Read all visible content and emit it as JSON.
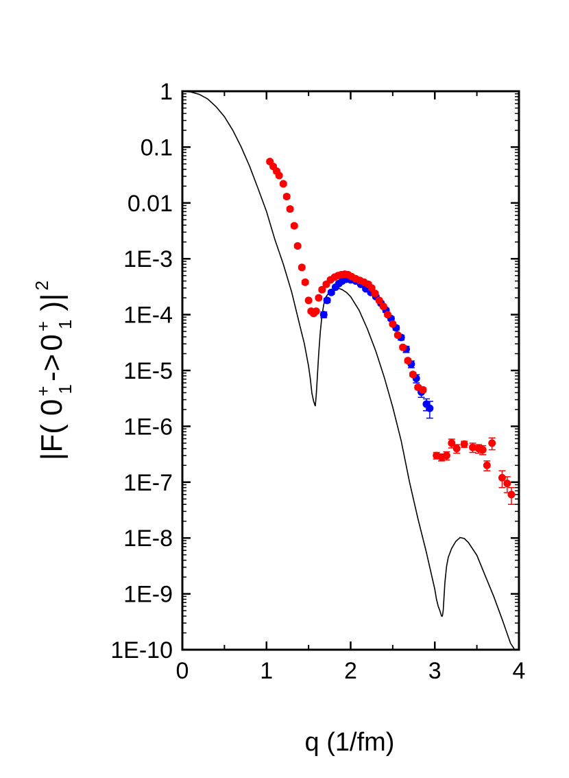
{
  "chart_data": {
    "type": "scatter",
    "title": "",
    "xlabel": "q (1/fm)",
    "ylabel": "|F( 0₁⁺->0₁⁺ )|²",
    "ylabel_parts": {
      "open": "|F(",
      "state_a": "0",
      "sub_a": "1",
      "sup_a": "+",
      "arrow": "->",
      "state_b": "0",
      "sub_b": "1",
      "sup_b": "+",
      "close": ")|",
      "power": "2"
    },
    "xlim": [
      0,
      4
    ],
    "ylim": [
      1e-10,
      1
    ],
    "yscale": "log",
    "grid": false,
    "x_ticks": [
      "0",
      "1",
      "2",
      "3",
      "4"
    ],
    "y_ticks": [
      "1",
      "0.1",
      "0.01",
      "1E-3",
      "1E-4",
      "1E-5",
      "1E-6",
      "1E-7",
      "1E-8",
      "1E-9",
      "1E-10"
    ],
    "colors": {
      "axis": "#000000",
      "series_red": "#ff0000",
      "series_blue": "#0000ff",
      "curve": "#000000"
    },
    "curve": {
      "name": "",
      "x": [
        0.0,
        0.1,
        0.2,
        0.3,
        0.4,
        0.5,
        0.6,
        0.7,
        0.8,
        0.9,
        1.0,
        1.1,
        1.2,
        1.3,
        1.4,
        1.45,
        1.5,
        1.52,
        1.54,
        1.56,
        1.58,
        1.59,
        1.6,
        1.62,
        1.64,
        1.66,
        1.68,
        1.7,
        1.75,
        1.8,
        1.85,
        1.9,
        1.95,
        2.0,
        2.1,
        2.2,
        2.3,
        2.4,
        2.5,
        2.6,
        2.7,
        2.8,
        2.9,
        3.0,
        3.02,
        3.04,
        3.06,
        3.08,
        3.09,
        3.1,
        3.12,
        3.14,
        3.16,
        3.2,
        3.25,
        3.3,
        3.35,
        3.4,
        3.5,
        3.6,
        3.7,
        3.8,
        3.9,
        3.95
      ],
      "y": [
        1.0,
        0.97,
        0.88,
        0.73,
        0.53,
        0.35,
        0.2,
        0.1,
        0.045,
        0.018,
        0.007,
        0.0022,
        0.0008,
        0.00025,
        6e-05,
        3e-05,
        1.2e-05,
        7.2e-06,
        3.9e-06,
        2.8e-06,
        2.3e-06,
        3.5e-06,
        6e-06,
        2e-05,
        5e-05,
        0.0001,
        0.00015,
        0.0002,
        0.00026,
        0.00029,
        0.0003,
        0.00028,
        0.00025,
        0.00021,
        0.00012,
        5.5e-05,
        2.2e-05,
        7.5e-06,
        2.2e-06,
        5.5e-07,
        1e-07,
        2.2e-08,
        5.5e-09,
        1.2e-09,
        8e-10,
        6e-10,
        5e-10,
        4e-10,
        4e-10,
        5e-10,
        1.6e-09,
        3.1e-09,
        4.5e-09,
        6.5e-09,
        8.7e-09,
        1.02e-08,
        9.8e-09,
        8.3e-09,
        4.9e-09,
        2.1e-09,
        9e-10,
        3.5e-10,
        1.3e-10,
        1e-10
      ]
    },
    "series": [
      {
        "name": "",
        "color": "#0000ff",
        "x": [
          1.68,
          1.72,
          1.77,
          1.82,
          1.86,
          1.9,
          1.95,
          2.0,
          2.06,
          2.12,
          2.18,
          2.24,
          2.3,
          2.36,
          2.42,
          2.48,
          2.54,
          2.6,
          2.66,
          2.72,
          2.78,
          2.84,
          2.9,
          2.94
        ],
        "y": [
          0.0001,
          0.00018,
          0.00025,
          0.00031,
          0.00036,
          0.0004,
          0.00043,
          0.00042,
          0.0004,
          0.00035,
          0.00029,
          0.00025,
          0.00021,
          0.00016,
          0.00012,
          8.5e-05,
          5.8e-05,
          3.9e-05,
          2.4e-05,
          1.3e-05,
          7.2e-06,
          4.1e-06,
          2.5e-06,
          2.1e-06
        ],
        "err": [
          1.2e-05,
          1.6e-05,
          2e-05,
          2e-05,
          2e-05,
          2e-05,
          2e-05,
          2e-05,
          2e-05,
          2e-05,
          1.8e-05,
          1.6e-05,
          1.4e-05,
          1.2e-05,
          1e-05,
          7e-06,
          5e-06,
          4e-06,
          3e-06,
          1.8e-06,
          1.2e-06,
          8e-07,
          6e-07,
          7e-07
        ]
      },
      {
        "name": "",
        "color": "#ff0000",
        "x": [
          1.04,
          1.08,
          1.12,
          1.15,
          1.2,
          1.24,
          1.28,
          1.33,
          1.37,
          1.42,
          1.46,
          1.5,
          1.53,
          1.56,
          1.59,
          1.62,
          1.66,
          1.71,
          1.76,
          1.81,
          1.85,
          1.89,
          1.93,
          1.97,
          2.01,
          2.06,
          2.11,
          2.16,
          2.21,
          2.25,
          2.29,
          2.34,
          2.39,
          2.44,
          2.5,
          2.56,
          2.62,
          2.68,
          2.74,
          2.8,
          2.86,
          3.02,
          3.08,
          3.14,
          3.2,
          3.26,
          3.35,
          3.45,
          3.52,
          3.57,
          3.62,
          3.68,
          3.8,
          3.86,
          3.91
        ],
        "y": [
          0.055,
          0.045,
          0.037,
          0.031,
          0.022,
          0.013,
          0.0078,
          0.0039,
          0.0017,
          0.0007,
          0.00038,
          0.00018,
          0.000115,
          0.000105,
          0.000115,
          0.0002,
          0.00028,
          0.00035,
          0.00042,
          0.00047,
          0.0005,
          0.00052,
          0.00053,
          0.00052,
          0.00048,
          0.00044,
          0.00041,
          0.00038,
          0.00035,
          0.0003,
          0.00024,
          0.00018,
          0.00014,
          0.0001,
          6.8e-05,
          4.3e-05,
          2.6e-05,
          1.5e-05,
          8.5e-06,
          5e-06,
          4.5e-06,
          3e-07,
          2.8e-07,
          3e-07,
          5e-07,
          4e-07,
          4.8e-07,
          4.2e-07,
          4e-07,
          3.8e-07,
          2e-07,
          5e-07,
          1.2e-07,
          9.5e-08,
          6e-08
        ],
        "err": [
          0.004,
          0.003,
          0.003,
          0.002,
          0.0015,
          0.001,
          0.0006,
          0.0003,
          0.00012,
          5e-05,
          3e-05,
          1e-05,
          8e-06,
          8e-06,
          8e-06,
          1.4e-05,
          2e-05,
          2.5e-05,
          3e-05,
          3e-05,
          3e-05,
          3e-05,
          3e-05,
          3e-05,
          3e-05,
          3e-05,
          3e-05,
          2.5e-05,
          2.5e-05,
          2e-05,
          1.7e-05,
          1.3e-05,
          1e-05,
          7e-06,
          5e-06,
          3e-06,
          2e-06,
          1.2e-06,
          7e-07,
          4e-07,
          4e-07,
          4e-08,
          4e-08,
          5e-08,
          9e-08,
          7e-08,
          6e-08,
          8e-08,
          7e-08,
          7e-08,
          4e-08,
          1.2e-07,
          4e-08,
          3e-08,
          2e-08
        ]
      }
    ]
  }
}
